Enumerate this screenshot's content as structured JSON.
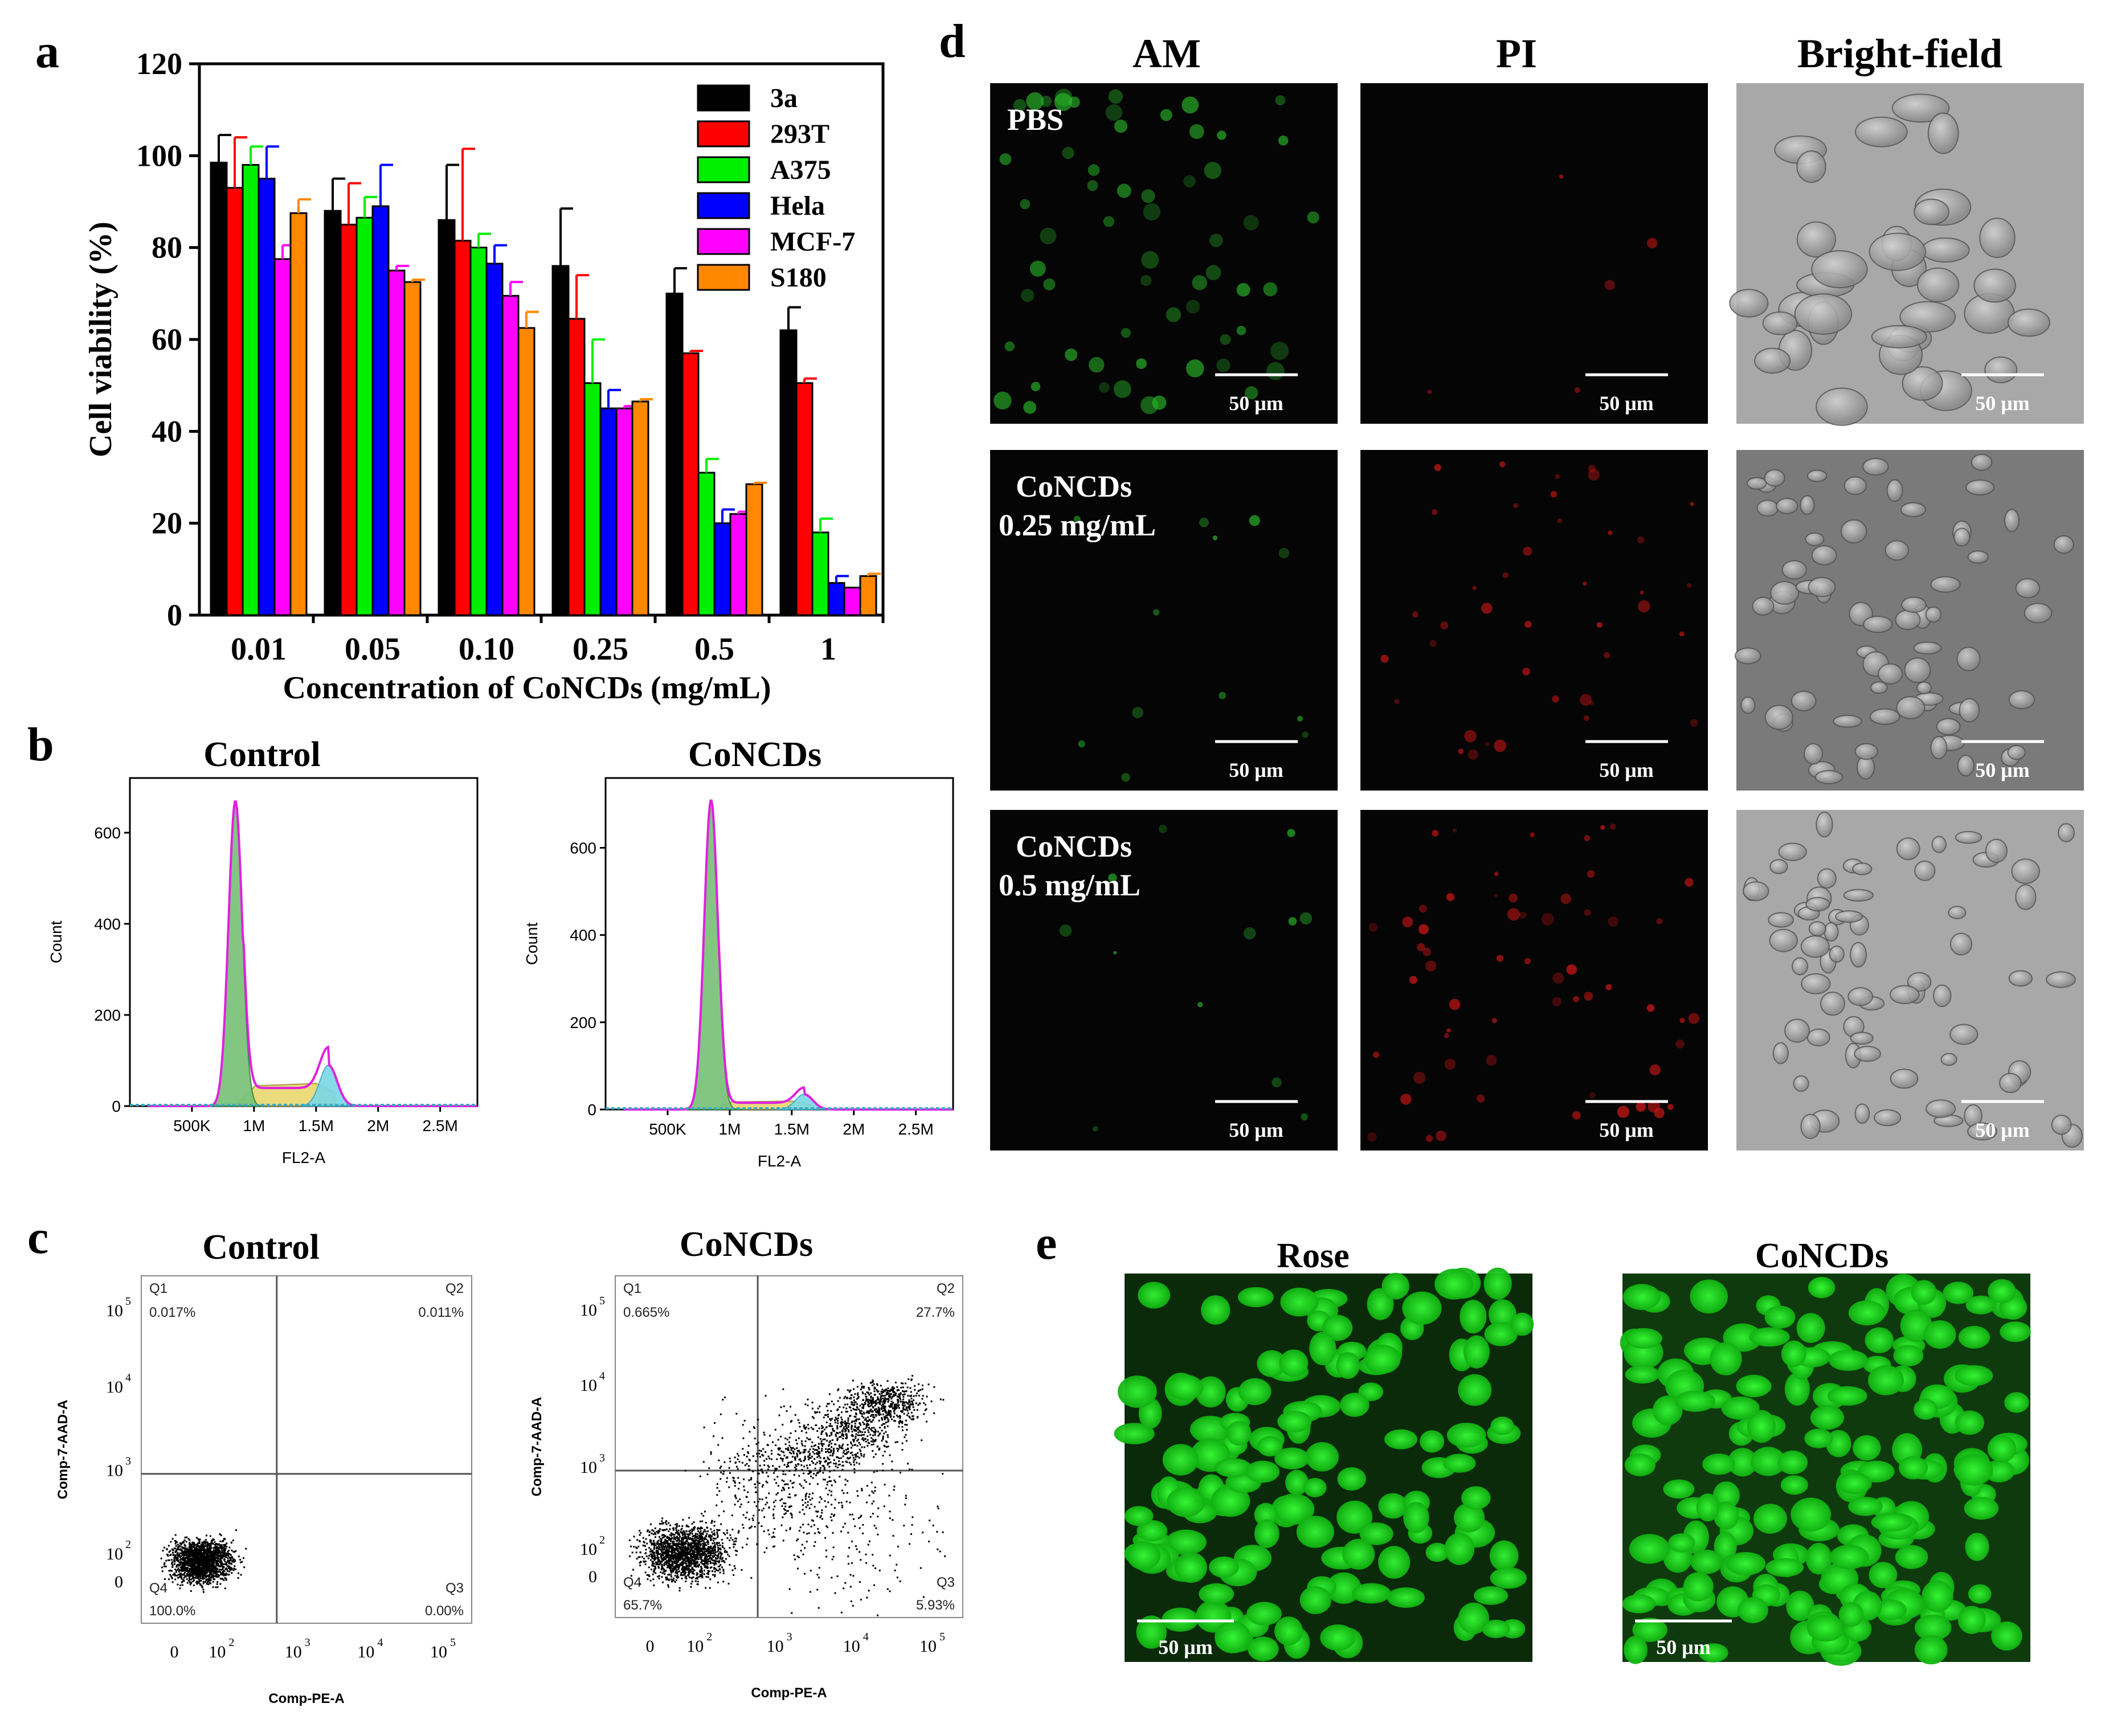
{
  "panels": {
    "a": {
      "letter": "a"
    },
    "b": {
      "letter": "b"
    },
    "c": {
      "letter": "c"
    },
    "d": {
      "letter": "d"
    },
    "e": {
      "letter": "e"
    }
  },
  "chart_data": [
    {
      "panel": "a",
      "type": "bar",
      "xlabel": "Concentration of CoNCDs (mg/mL)",
      "ylabel": "Cell viability (%)",
      "ylim": [
        0,
        120
      ],
      "yticks": [
        0,
        20,
        40,
        60,
        80,
        100,
        120
      ],
      "categories": [
        "0.01",
        "0.05",
        "0.10",
        "0.25",
        "0.5",
        "1"
      ],
      "legend_position": "top-right",
      "series": [
        {
          "name": "3a",
          "color": "#000000",
          "values": [
            98.5,
            88,
            86,
            76,
            70,
            62
          ],
          "errors": [
            6,
            7,
            12,
            12.5,
            5.5,
            5
          ]
        },
        {
          "name": "293T",
          "color": "#ff0000",
          "values": [
            93,
            85,
            81.5,
            64.5,
            57,
            50.5
          ],
          "errors": [
            11,
            9,
            20,
            9.5,
            0.5,
            1
          ]
        },
        {
          "name": "A375",
          "color": "#00ee00",
          "values": [
            98,
            86.5,
            80,
            50.5,
            31,
            18
          ],
          "errors": [
            4,
            4.5,
            3,
            9.5,
            3,
            3
          ]
        },
        {
          "name": "Hela",
          "color": "#0000ff",
          "values": [
            95,
            89,
            76.5,
            45,
            20,
            7
          ],
          "errors": [
            7,
            9,
            4,
            4,
            3,
            1.5
          ]
        },
        {
          "name": "MCF-7",
          "color": "#ff00ff",
          "values": [
            77.5,
            75,
            69.5,
            45,
            22,
            6
          ],
          "errors": [
            3,
            1,
            3,
            0.5,
            0.5,
            0
          ]
        },
        {
          "name": "S180",
          "color": "#ff8800",
          "values": [
            87.5,
            72.5,
            62.5,
            46.5,
            28.5,
            8.5
          ],
          "errors": [
            3,
            0.5,
            3.5,
            0.5,
            0.3,
            0.5
          ]
        }
      ]
    },
    {
      "panel": "b",
      "type": "area",
      "charts": [
        {
          "title": "Control",
          "xlabel": "FL2-A",
          "ylabel": "Count",
          "yticks": [
            0,
            200,
            400,
            600
          ],
          "ylim": [
            0,
            720
          ],
          "xticks": [
            "500K",
            "1M",
            "1.5M",
            "2M",
            "2.5M"
          ],
          "x_values": [
            500000,
            1000000,
            1500000,
            2000000,
            2500000
          ],
          "xlim": [
            0,
            2800000
          ],
          "g1_peak": {
            "x": 850000,
            "count": 670
          },
          "g2_peak": {
            "x": 1600000,
            "count": 90
          }
        },
        {
          "title": "CoNCDs",
          "xlabel": "FL2-A",
          "ylabel": "Count",
          "yticks": [
            0,
            200,
            400,
            600
          ],
          "ylim": [
            0,
            760
          ],
          "xticks": [
            "500K",
            "1M",
            "1.5M",
            "2M",
            "2.5M"
          ],
          "x_values": [
            500000,
            1000000,
            1500000,
            2000000,
            2500000
          ],
          "xlim": [
            0,
            2800000
          ],
          "g1_peak": {
            "x": 850000,
            "count": 710
          },
          "g2_peak": {
            "x": 1600000,
            "count": 35
          }
        }
      ]
    },
    {
      "panel": "c",
      "type": "scatter",
      "charts": [
        {
          "title": "Control",
          "xlabel": "Comp-PE-A",
          "ylabel": "Comp-7-AAD-A",
          "xticks": [
            "0",
            "10",
            "10",
            "10",
            "10"
          ],
          "xtick_exp": [
            "",
            "2",
            "3",
            "4",
            "5"
          ],
          "yticks": [
            "0",
            "10",
            "10",
            "10",
            "10"
          ],
          "ytick_exp": [
            "",
            "2",
            "3",
            "4",
            "5"
          ],
          "quadrants": [
            {
              "name": "Q1",
              "value": "0.017%"
            },
            {
              "name": "Q2",
              "value": "0.011%"
            },
            {
              "name": "Q3",
              "value": "0.00%"
            },
            {
              "name": "Q4",
              "value": "100.0%"
            }
          ]
        },
        {
          "title": "CoNCDs",
          "xlabel": "Comp-PE-A",
          "ylabel": "Comp-7-AAD-A",
          "xticks": [
            "0",
            "10",
            "10",
            "10",
            "10"
          ],
          "xtick_exp": [
            "",
            "2",
            "3",
            "4",
            "5"
          ],
          "yticks": [
            "0",
            "10",
            "10",
            "10",
            "10"
          ],
          "ytick_exp": [
            "",
            "2",
            "3",
            "4",
            "5"
          ],
          "quadrants": [
            {
              "name": "Q1",
              "value": "0.665%"
            },
            {
              "name": "Q2",
              "value": "27.7%"
            },
            {
              "name": "Q3",
              "value": "5.93%"
            },
            {
              "name": "Q4",
              "value": "65.7%"
            }
          ]
        }
      ]
    }
  ],
  "microscopy": {
    "columns": [
      "AM",
      "PI",
      "Bright-field"
    ],
    "rows": [
      {
        "label1": "PBS",
        "label2": ""
      },
      {
        "label1": "CoNCDs",
        "label2": "0.25 mg/mL"
      },
      {
        "label1": "CoNCDs",
        "label2": "0.5 mg/mL"
      }
    ],
    "scale_bar": "50 μm",
    "e_titles": [
      "Rose",
      "CoNCDs"
    ]
  },
  "colors": {
    "am": "#1a9a1a",
    "pi": "#d01010",
    "bright": "#9a9a9a",
    "e_green": "#22dd22"
  }
}
